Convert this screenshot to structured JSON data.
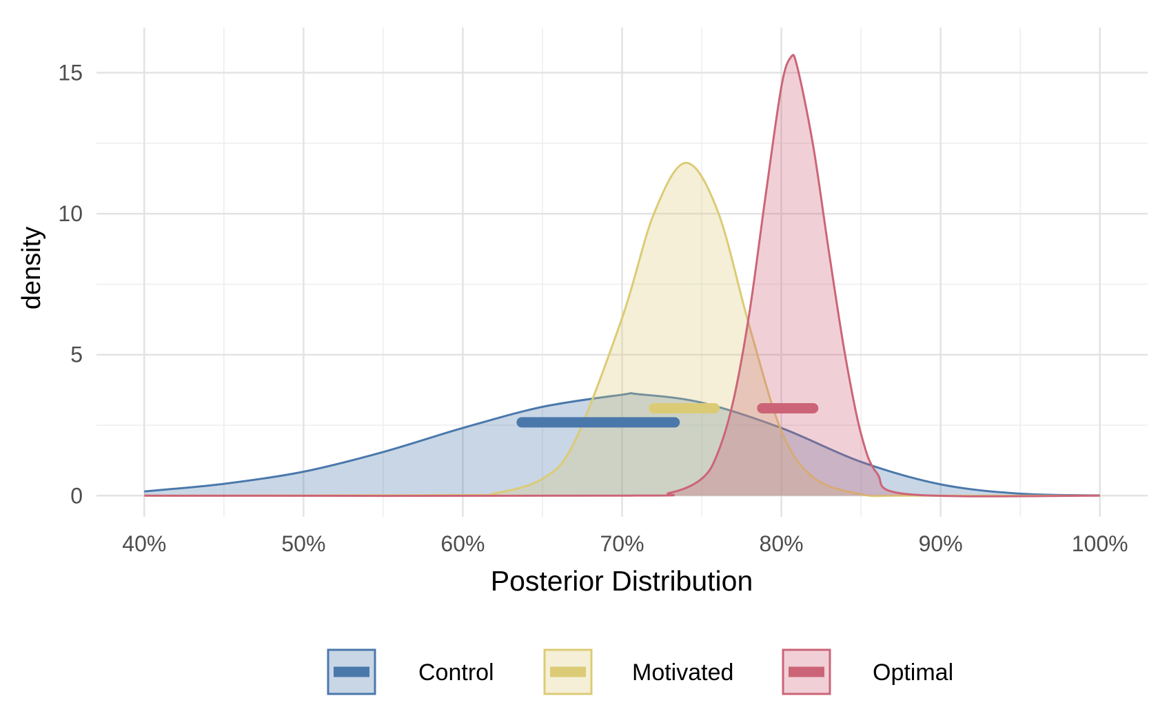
{
  "chart_data": {
    "type": "area",
    "title": "",
    "xlabel": "Posterior Distribution",
    "ylabel": "density",
    "xlim": [
      0.37,
      1.03
    ],
    "ylim": [
      -0.75,
      16.6
    ],
    "x_ticks": [
      0.4,
      0.5,
      0.6,
      0.7,
      0.8,
      0.9,
      1.0
    ],
    "x_tick_labels": [
      "40%",
      "50%",
      "60%",
      "70%",
      "80%",
      "90%",
      "100%"
    ],
    "y_ticks": [
      0,
      5,
      10,
      15
    ],
    "y_tick_labels": [
      "0",
      "5",
      "10",
      "15"
    ],
    "grid": true,
    "legend_position": "bottom",
    "series": [
      {
        "name": "Control",
        "color": "#4a78ab",
        "fill": "#c5d4e4",
        "x": [
          0.4,
          0.45,
          0.5,
          0.55,
          0.6,
          0.65,
          0.7,
          0.71,
          0.75,
          0.8,
          0.85,
          0.9,
          0.95,
          1.0
        ],
        "y": [
          0.15,
          0.42,
          0.85,
          1.55,
          2.4,
          3.15,
          3.58,
          3.6,
          3.3,
          2.4,
          1.2,
          0.4,
          0.07,
          0.01
        ],
        "interval": [
          0.637,
          0.733
        ],
        "interval_y": 2.6
      },
      {
        "name": "Motivated",
        "color": "#dccb76",
        "fill": "#f5eed5",
        "x": [
          0.4,
          0.6,
          0.62,
          0.65,
          0.67,
          0.7,
          0.72,
          0.74,
          0.76,
          0.78,
          0.8,
          0.82,
          0.85,
          0.88,
          1.0
        ],
        "y": [
          0.0,
          0.02,
          0.08,
          0.6,
          1.9,
          6.3,
          10.0,
          11.8,
          10.1,
          6.0,
          2.3,
          0.65,
          0.05,
          0.0,
          0.0
        ],
        "interval": [
          0.72,
          0.758
        ],
        "interval_y": 3.1
      },
      {
        "name": "Optimal",
        "color": "#cc6477",
        "fill": "#eecdd3",
        "x": [
          0.4,
          0.7,
          0.73,
          0.75,
          0.76,
          0.77,
          0.78,
          0.79,
          0.8,
          0.806,
          0.81,
          0.82,
          0.83,
          0.84,
          0.85,
          0.86,
          0.88,
          1.0
        ],
        "y": [
          0.0,
          0.0,
          0.1,
          0.6,
          1.5,
          3.4,
          6.5,
          10.6,
          14.5,
          15.55,
          15.2,
          12.4,
          8.6,
          5.0,
          2.2,
          0.8,
          0.05,
          0.0
        ],
        "interval": [
          0.788,
          0.82
        ],
        "interval_y": 3.1
      }
    ]
  }
}
